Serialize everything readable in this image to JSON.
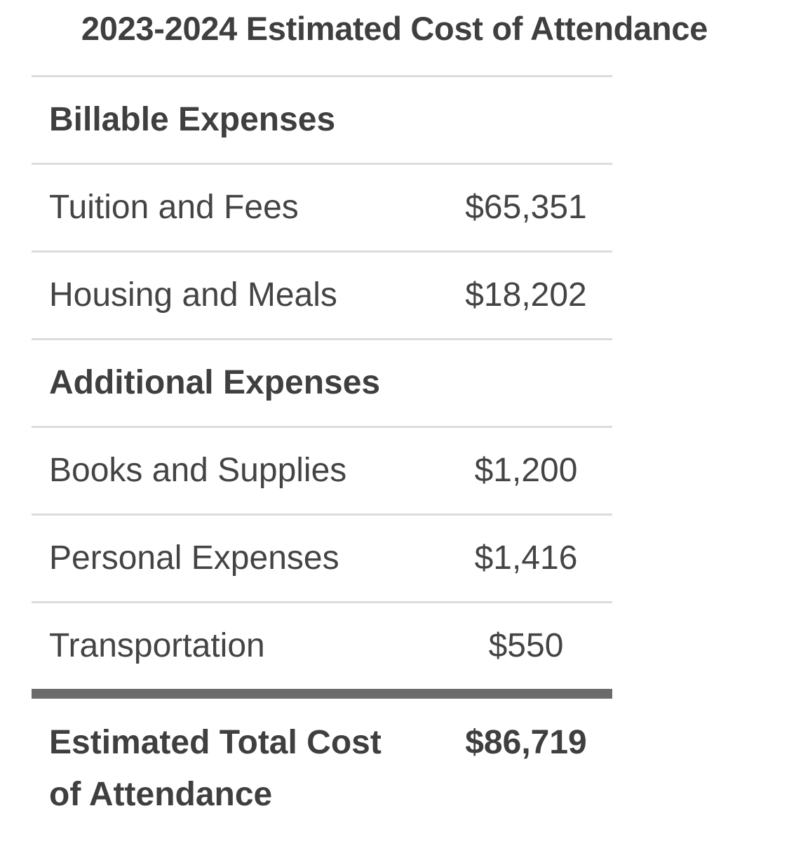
{
  "title": "2023-2024 Estimated Cost of Attendance",
  "billable": {
    "heading": "Billable Expenses",
    "rows": [
      {
        "label": "Tuition and Fees",
        "value": "$65,351"
      },
      {
        "label": "Housing and Meals",
        "value": "$18,202"
      }
    ]
  },
  "additional": {
    "heading": "Additional Expenses",
    "rows": [
      {
        "label": "Books and Supplies",
        "value": "$1,200"
      },
      {
        "label": "Personal Expenses",
        "value": "$1,416"
      },
      {
        "label": "Transportation",
        "value": "$550"
      }
    ]
  },
  "total": {
    "label": "Estimated Total Cost of Attendance",
    "value": "$86,719"
  }
}
